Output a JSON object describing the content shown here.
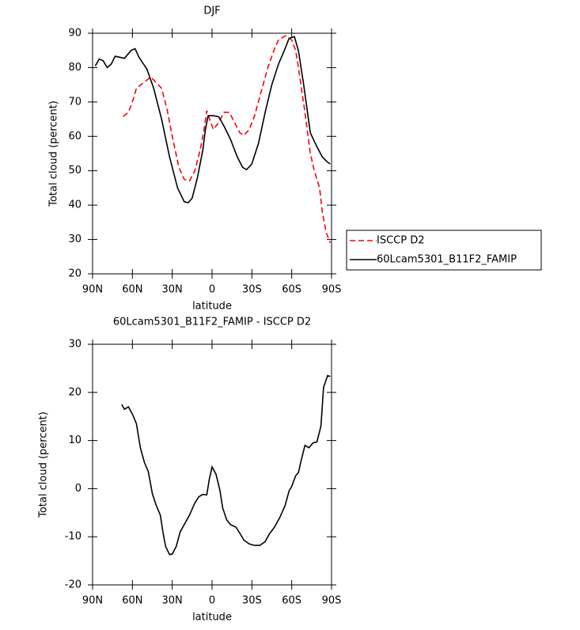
{
  "chart_data": [
    {
      "type": "line",
      "title": "DJF",
      "xlabel": "latitude",
      "ylabel": "Total cloud (percent)",
      "xlim": [
        90,
        -90
      ],
      "ylim": [
        20,
        90
      ],
      "xticks": [
        {
          "value": 90,
          "label": "90N"
        },
        {
          "value": 60,
          "label": "60N"
        },
        {
          "value": 30,
          "label": "30N"
        },
        0,
        {
          "value": -30,
          "label": "30S"
        },
        {
          "value": -60,
          "label": "60S"
        },
        {
          "value": -90,
          "label": "90S"
        }
      ],
      "yticks": [
        20,
        30,
        40,
        50,
        60,
        70,
        80,
        90
      ],
      "legend": "outside-right",
      "series": [
        {
          "name": "ISCCP D2",
          "color": "#ff0000",
          "linestyle": "dashed",
          "x": [
            67,
            63,
            60,
            57,
            52,
            46,
            43,
            38,
            34,
            30,
            25,
            21,
            17,
            13,
            9,
            6,
            4,
            1,
            -1,
            -5,
            -9,
            -13,
            -17,
            -21,
            -24,
            -28,
            -32,
            -37,
            -42,
            -47,
            -50,
            -54,
            -56,
            -60,
            -63,
            -65,
            -70,
            -74,
            -77,
            -81,
            -83,
            -86,
            -89
          ],
          "values": [
            65.8,
            67,
            70,
            74,
            75.5,
            77.3,
            76,
            74,
            68,
            60,
            51,
            47.5,
            47,
            50,
            56,
            62,
            67.5,
            64,
            62,
            64,
            67,
            67,
            64,
            61,
            60.3,
            62,
            66,
            73,
            80,
            85.5,
            88,
            89,
            89.3,
            88,
            85,
            80,
            67,
            55,
            50,
            45,
            38,
            32,
            29
          ]
        },
        {
          "name": "60Lcam5301_B11F2_FAMIP",
          "color": "#000000",
          "linestyle": "solid",
          "x": [
            88,
            85,
            82,
            79,
            76,
            73,
            66,
            61,
            58,
            55,
            49,
            44,
            38,
            32,
            26,
            21,
            18,
            15,
            11,
            7,
            5,
            3,
            -1,
            -5,
            -9,
            -14,
            -19,
            -23,
            -26,
            -30,
            -35,
            -40,
            -45,
            -50,
            -55,
            -58,
            -62,
            -65,
            -69,
            -74,
            -79,
            -83,
            -87,
            -89
          ],
          "values": [
            80.5,
            82.5,
            82,
            80,
            81,
            83.3,
            82.7,
            85,
            85.5,
            83,
            79.5,
            74,
            65,
            54,
            45,
            41,
            40.7,
            42,
            48,
            56,
            62,
            66,
            66,
            65.7,
            63,
            59,
            54,
            51,
            50.3,
            52,
            58,
            67,
            75,
            81,
            85.5,
            88.5,
            89,
            85,
            75,
            61,
            57,
            54,
            52.5,
            52
          ]
        }
      ]
    },
    {
      "type": "line",
      "title": "60Lcam5301_B11F2_FAMIP - ISCCP D2",
      "xlabel": "latitude",
      "ylabel": "Total cloud (percent)",
      "xlim": [
        90,
        -90
      ],
      "ylim": [
        -20,
        30
      ],
      "xticks": [
        {
          "value": 90,
          "label": "90N"
        },
        {
          "value": 60,
          "label": "60N"
        },
        {
          "value": 30,
          "label": "30N"
        },
        0,
        {
          "value": -30,
          "label": "30S"
        },
        {
          "value": -60,
          "label": "60S"
        },
        {
          "value": -90,
          "label": "90S"
        }
      ],
      "yticks": [
        -20,
        -10,
        0,
        10,
        20,
        30
      ],
      "series": [
        {
          "color": "#000000",
          "linestyle": "solid",
          "x": [
            68,
            66,
            63,
            60,
            57,
            54,
            51,
            48,
            45,
            42,
            39,
            37,
            35,
            32,
            30,
            27,
            24,
            20,
            17,
            13,
            10,
            7,
            4,
            2,
            0,
            -3,
            -6,
            -8,
            -11,
            -14,
            -18,
            -21,
            -24,
            -28,
            -32,
            -36,
            -40,
            -43,
            -47,
            -51,
            -55,
            -58,
            -60,
            -63,
            -65,
            -67,
            -70,
            -73,
            -76,
            -79,
            -82,
            -84,
            -87,
            -89
          ],
          "values": [
            17.5,
            16.5,
            17,
            15.5,
            13.5,
            8.5,
            5.5,
            3.5,
            -1,
            -3.5,
            -5.5,
            -9,
            -12,
            -13.7,
            -13.6,
            -12,
            -9,
            -7,
            -5.5,
            -3,
            -1.7,
            -1.2,
            -1.3,
            2,
            4.5,
            3,
            -0.5,
            -4,
            -6.5,
            -7.5,
            -8,
            -9.3,
            -10.7,
            -11.5,
            -11.8,
            -11.8,
            -11,
            -9.5,
            -8,
            -6,
            -3.5,
            -0.5,
            0.5,
            2.7,
            3.3,
            5.7,
            9,
            8.5,
            9.5,
            9.7,
            13,
            21,
            23.5,
            23.3
          ]
        }
      ]
    }
  ]
}
